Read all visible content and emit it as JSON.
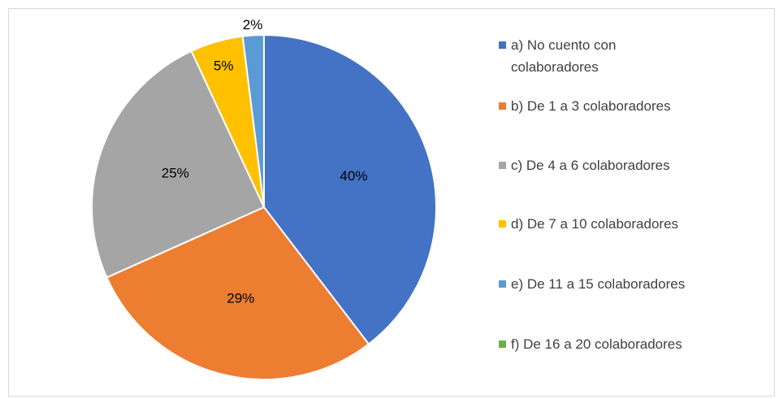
{
  "chart_data": {
    "type": "pie",
    "categories": [
      "a) No cuento con colaboradores",
      "b) De 1 a 3 colaboradores",
      "c) De 4 a 6 colaboradores",
      "d) De 7 a 10 colaboradores",
      "e) De 11 a 15 colaboradores",
      "f) De 16 a 20 colaboradores"
    ],
    "values": [
      40,
      29,
      25,
      5,
      2,
      0
    ],
    "value_labels": [
      "40%",
      "29%",
      "25%",
      "5%",
      "2%",
      null
    ],
    "colors": [
      "#4472c4",
      "#ed7d31",
      "#a5a5a5",
      "#ffc000",
      "#5b9bd5",
      "#70ad47"
    ],
    "legend": "right"
  }
}
